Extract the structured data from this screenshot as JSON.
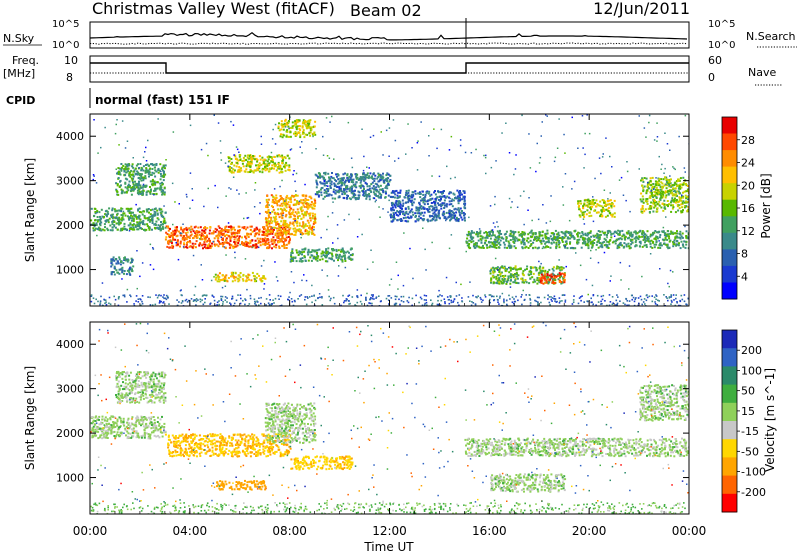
{
  "header": {
    "station": "Christmas Valley West (fitACF)",
    "beam": "Beam 02",
    "date": "12/Jun/2011"
  },
  "status": {
    "nsky_label": "N.Sky",
    "nsearch_label": "N.Search",
    "freq_label_1": "Freq.",
    "freq_label_2": "[MHz]",
    "nave_label": "Nave",
    "cpid_label": "CPID",
    "mode": "normal (fast) 151 IF",
    "noise_ticks": [
      "10^5",
      "10^0"
    ],
    "freq_ticks": [
      "10",
      "8"
    ],
    "nave_ticks": [
      "60",
      "0"
    ]
  },
  "chart_data": [
    {
      "type": "heatmap",
      "panel": "power",
      "ylabel": "Slant Range [km]",
      "xlabel": "Time UT",
      "x_ticks": [
        "00:00",
        "04:00",
        "08:00",
        "12:00",
        "16:00",
        "20:00",
        "00:00"
      ],
      "xlim_hours": [
        0,
        24
      ],
      "y_ticks": [
        1000,
        2000,
        3000,
        4000
      ],
      "ylim_km": [
        180,
        4500
      ],
      "colorbar_label": "Power [dB]",
      "colorbar_ticks": [
        "28",
        "24",
        "20",
        "16",
        "12",
        "8",
        "4"
      ],
      "colorbar_colors": [
        "#e80000",
        "#ff4800",
        "#ff8c00",
        "#ffbf00",
        "#c8d200",
        "#58b800",
        "#40a060",
        "#3a8a8a",
        "#2a60b0",
        "#1a3ad0",
        "#0000ff"
      ],
      "echo_regions": [
        {
          "t_start": 0.0,
          "t_end": 3.0,
          "range_low": 1900,
          "range_high": 2400,
          "power_db": 12
        },
        {
          "t_start": 1.0,
          "t_end": 3.0,
          "range_low": 2700,
          "range_high": 3400,
          "power_db": 12
        },
        {
          "t_start": 0.8,
          "t_end": 1.7,
          "range_low": 900,
          "range_high": 1300,
          "power_db": 8
        },
        {
          "t_start": 3.0,
          "t_end": 8.0,
          "range_low": 1500,
          "range_high": 2000,
          "power_db": 26
        },
        {
          "t_start": 7.0,
          "t_end": 9.0,
          "range_low": 1800,
          "range_high": 2700,
          "power_db": 22
        },
        {
          "t_start": 5.5,
          "t_end": 8.0,
          "range_low": 3200,
          "range_high": 3600,
          "power_db": 18
        },
        {
          "t_start": 7.5,
          "t_end": 9.0,
          "range_low": 4000,
          "range_high": 4400,
          "power_db": 18
        },
        {
          "t_start": 5.0,
          "t_end": 7.0,
          "range_low": 750,
          "range_high": 950,
          "power_db": 20
        },
        {
          "t_start": 8.0,
          "t_end": 10.5,
          "range_low": 1200,
          "range_high": 1500,
          "power_db": 12
        },
        {
          "t_start": 9.0,
          "t_end": 12.0,
          "range_low": 2600,
          "range_high": 3200,
          "power_db": 8
        },
        {
          "t_start": 12.0,
          "t_end": 15.0,
          "range_low": 2100,
          "range_high": 2800,
          "power_db": 6
        },
        {
          "t_start": 15.0,
          "t_end": 24.0,
          "range_low": 1500,
          "range_high": 1900,
          "power_db": 12
        },
        {
          "t_start": 16.0,
          "t_end": 19.0,
          "range_low": 700,
          "range_high": 1100,
          "power_db": 14
        },
        {
          "t_start": 18.0,
          "t_end": 19.0,
          "range_low": 700,
          "range_high": 950,
          "power_db": 28
        },
        {
          "t_start": 19.5,
          "t_end": 21.0,
          "range_low": 2200,
          "range_high": 2600,
          "power_db": 18
        },
        {
          "t_start": 22.0,
          "t_end": 24.0,
          "range_low": 2300,
          "range_high": 3100,
          "power_db": 16
        }
      ]
    },
    {
      "type": "heatmap",
      "panel": "velocity",
      "ylabel": "Slant Range [km]",
      "xlabel": "Time UT",
      "x_ticks": [
        "00:00",
        "04:00",
        "08:00",
        "12:00",
        "16:00",
        "20:00",
        "00:00"
      ],
      "xlim_hours": [
        0,
        24
      ],
      "y_ticks": [
        1000,
        2000,
        3000,
        4000
      ],
      "ylim_km": [
        180,
        4500
      ],
      "colorbar_label": "Velocity [m s^-1]",
      "colorbar_ticks": [
        "200",
        "100",
        "50",
        "15",
        "-15",
        "-50",
        "-100",
        "-200"
      ],
      "colorbar_colors": [
        "#1c2ab8",
        "#2f63c4",
        "#2b8a6a",
        "#3fae3f",
        "#8fd05a",
        "#c8c8c8",
        "#ffd700",
        "#ffa500",
        "#ff6400",
        "#ff0000"
      ],
      "echo_regions": [
        {
          "t_start": 0.0,
          "t_end": 3.0,
          "range_low": 1900,
          "range_high": 2400,
          "velocity": 0
        },
        {
          "t_start": 1.0,
          "t_end": 3.0,
          "range_low": 2700,
          "range_high": 3400,
          "velocity": 0
        },
        {
          "t_start": 3.0,
          "t_end": 8.0,
          "range_low": 1500,
          "range_high": 2000,
          "velocity": -50
        },
        {
          "t_start": 7.0,
          "t_end": 9.0,
          "range_low": 1800,
          "range_high": 2700,
          "velocity": 0
        },
        {
          "t_start": 5.0,
          "t_end": 7.0,
          "range_low": 750,
          "range_high": 950,
          "velocity": -80
        },
        {
          "t_start": 8.0,
          "t_end": 10.5,
          "range_low": 1200,
          "range_high": 1500,
          "velocity": -40
        },
        {
          "t_start": 15.0,
          "t_end": 24.0,
          "range_low": 1500,
          "range_high": 1900,
          "velocity": 0
        },
        {
          "t_start": 16.0,
          "t_end": 19.0,
          "range_low": 700,
          "range_high": 1100,
          "velocity": 0
        },
        {
          "t_start": 22.0,
          "t_end": 24.0,
          "range_low": 2300,
          "range_high": 3100,
          "velocity": 0
        }
      ]
    }
  ]
}
